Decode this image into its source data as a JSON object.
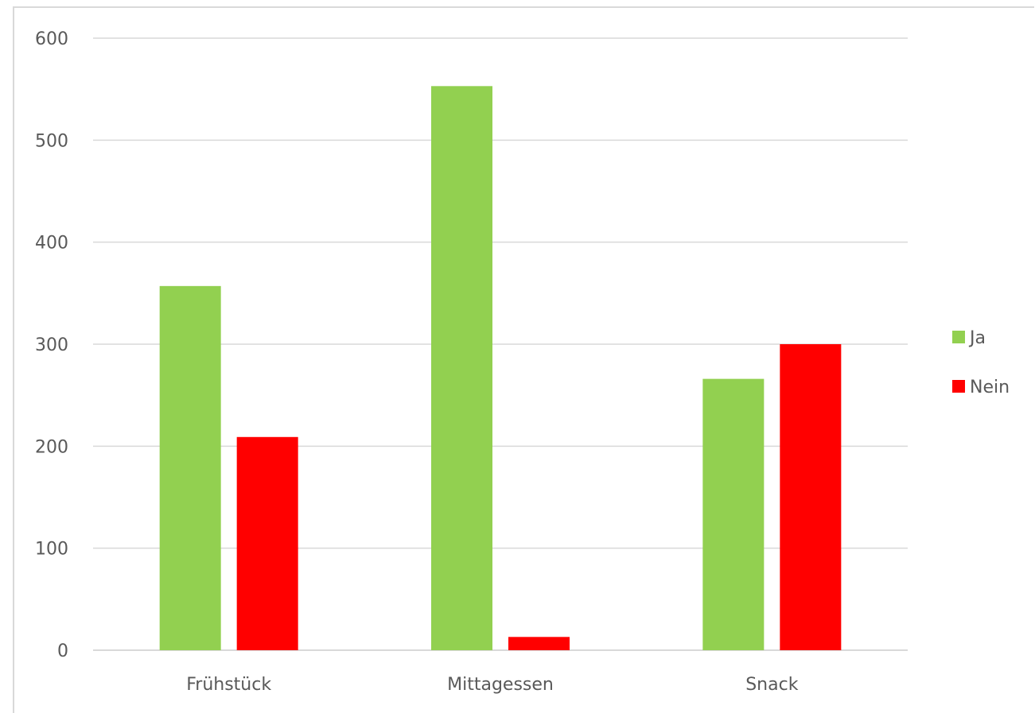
{
  "chart_data": {
    "type": "bar",
    "categories": [
      "Frühstück",
      "Mittagessen",
      "Snack"
    ],
    "series": [
      {
        "name": "Ja",
        "values": [
          357,
          553,
          266
        ],
        "color": "#92d050"
      },
      {
        "name": "Nein",
        "values": [
          209,
          13,
          300
        ],
        "color": "#ff0000"
      }
    ],
    "yticks": [
      "0",
      "100",
      "200",
      "300",
      "400",
      "500",
      "600"
    ],
    "ylim": [
      0,
      600
    ],
    "grid": true,
    "legend": "right"
  }
}
